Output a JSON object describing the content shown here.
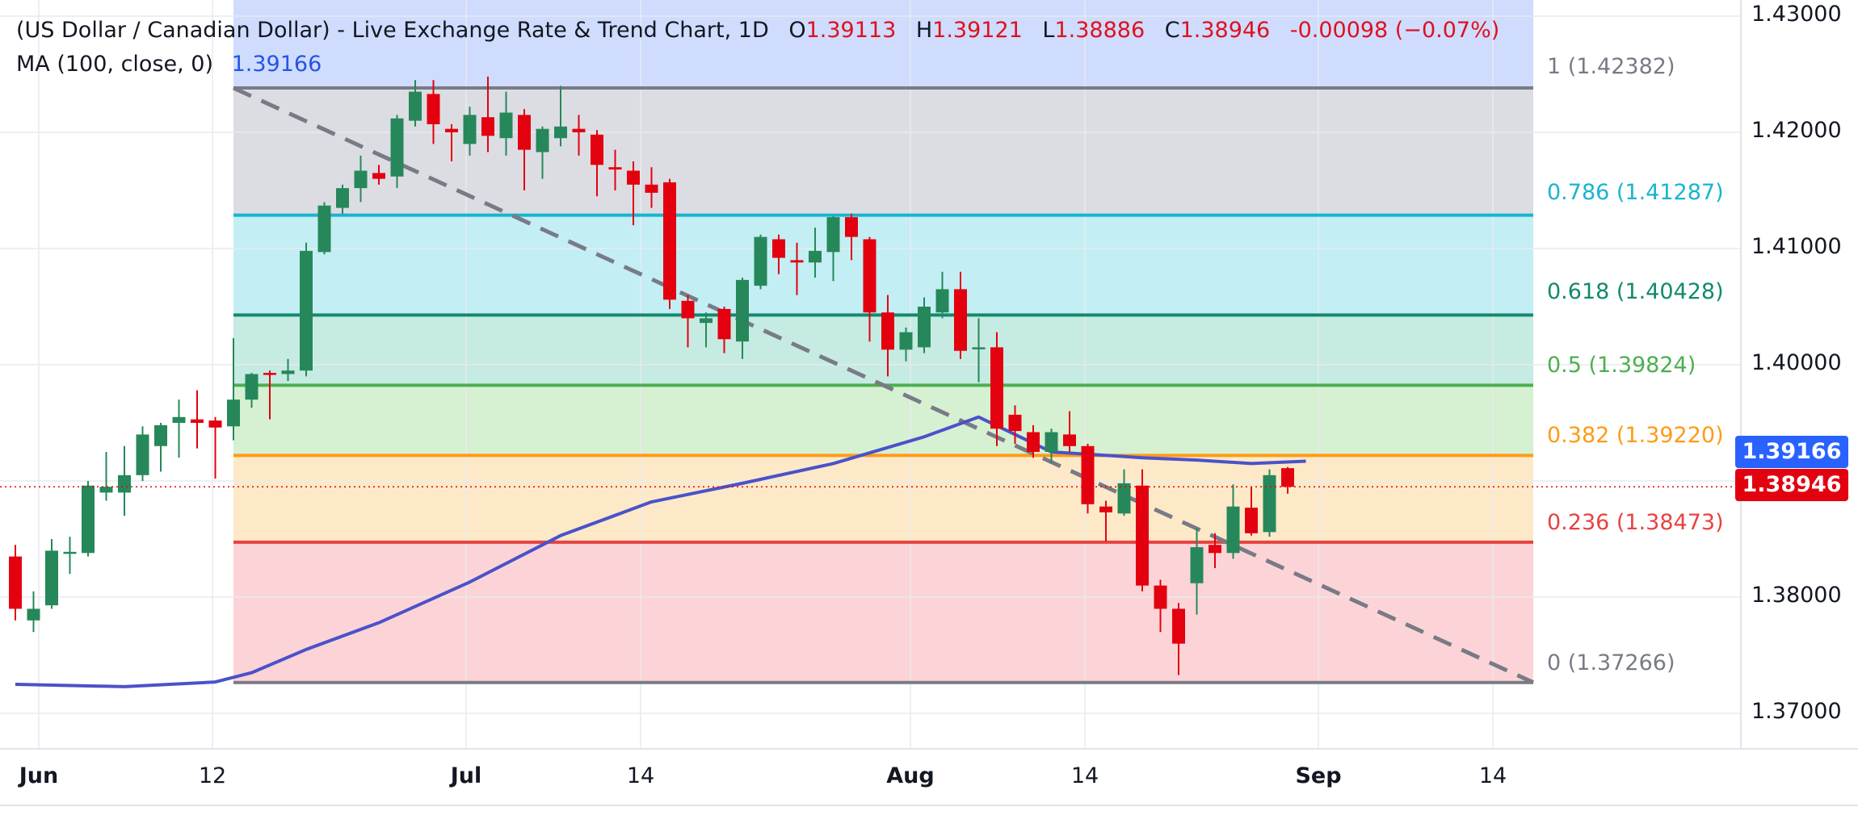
{
  "header": {
    "title": "(US Dollar / Canadian Dollar) - Live Exchange Rate & Trend Chart, 1D",
    "o_label": "O",
    "o_value": "1.39113",
    "h_label": "H",
    "h_value": "1.39121",
    "l_label": "L",
    "l_value": "1.38886",
    "c_label": "C",
    "c_value": "1.38946",
    "change": "-0.00098 (−0.07%)",
    "ma_label": "MA (100, close, 0)",
    "ma_value": "1.39166"
  },
  "colors": {
    "up": "#26885a",
    "down": "#e3000f",
    "ma": "#4a52c9",
    "fib_1": "#787b86",
    "fib_786": "#17b5cf",
    "fib_618": "#128a6e",
    "fib_5": "#4caf50",
    "fib_382": "#ff9a16",
    "fib_236": "#e84242",
    "fib_0": "#787b86"
  },
  "price_tags": {
    "ma": "1.39166",
    "close": "1.38946"
  },
  "chart_data": {
    "type": "candlestick",
    "title": "(US Dollar / Canadian Dollar) - Live Exchange Rate & Trend Chart, 1D",
    "ylim": [
      1.3678,
      1.4302
    ],
    "y_ticks": [
      "1.43000",
      "1.42000",
      "1.41000",
      "1.40000",
      "1.39000",
      "1.38000",
      "1.37000"
    ],
    "x_ticks": [
      "Jun",
      "12",
      "Jul",
      "14",
      "Aug",
      "14",
      "Sep",
      "14"
    ],
    "grid": true,
    "candles": [
      {
        "o": 1.3835,
        "h": 1.3845,
        "l": 1.378,
        "c": 1.379
      },
      {
        "o": 1.378,
        "h": 1.3805,
        "l": 1.377,
        "c": 1.379
      },
      {
        "o": 1.3793,
        "h": 1.385,
        "l": 1.379,
        "c": 1.384
      },
      {
        "o": 1.3838,
        "h": 1.3852,
        "l": 1.382,
        "c": 1.3839
      },
      {
        "o": 1.3838,
        "h": 1.39,
        "l": 1.3835,
        "c": 1.3896
      },
      {
        "o": 1.389,
        "h": 1.3925,
        "l": 1.3883,
        "c": 1.3895
      },
      {
        "o": 1.389,
        "h": 1.393,
        "l": 1.387,
        "c": 1.3905
      },
      {
        "o": 1.3905,
        "h": 1.3947,
        "l": 1.39,
        "c": 1.394
      },
      {
        "o": 1.393,
        "h": 1.395,
        "l": 1.3908,
        "c": 1.3948
      },
      {
        "o": 1.395,
        "h": 1.397,
        "l": 1.392,
        "c": 1.3955
      },
      {
        "o": 1.3953,
        "h": 1.3978,
        "l": 1.3928,
        "c": 1.395
      },
      {
        "o": 1.3952,
        "h": 1.3955,
        "l": 1.3902,
        "c": 1.3946
      },
      {
        "o": 1.3947,
        "h": 1.4023,
        "l": 1.3935,
        "c": 1.397
      },
      {
        "o": 1.397,
        "h": 1.3993,
        "l": 1.3963,
        "c": 1.3992
      },
      {
        "o": 1.3993,
        "h": 1.3995,
        "l": 1.3953,
        "c": 1.3992
      },
      {
        "o": 1.3992,
        "h": 1.4005,
        "l": 1.3986,
        "c": 1.3995
      },
      {
        "o": 1.3995,
        "h": 1.4105,
        "l": 1.399,
        "c": 1.4098
      },
      {
        "o": 1.4097,
        "h": 1.414,
        "l": 1.4095,
        "c": 1.4137
      },
      {
        "o": 1.4135,
        "h": 1.4155,
        "l": 1.413,
        "c": 1.4152
      },
      {
        "o": 1.4152,
        "h": 1.418,
        "l": 1.414,
        "c": 1.4167
      },
      {
        "o": 1.4165,
        "h": 1.4172,
        "l": 1.4155,
        "c": 1.416
      },
      {
        "o": 1.4162,
        "h": 1.4215,
        "l": 1.4152,
        "c": 1.4212
      },
      {
        "o": 1.421,
        "h": 1.4245,
        "l": 1.4205,
        "c": 1.4235
      },
      {
        "o": 1.4233,
        "h": 1.4245,
        "l": 1.419,
        "c": 1.4207
      },
      {
        "o": 1.4203,
        "h": 1.4207,
        "l": 1.4175,
        "c": 1.42
      },
      {
        "o": 1.419,
        "h": 1.4222,
        "l": 1.418,
        "c": 1.4215
      },
      {
        "o": 1.4213,
        "h": 1.4248,
        "l": 1.4183,
        "c": 1.4197
      },
      {
        "o": 1.4195,
        "h": 1.4235,
        "l": 1.418,
        "c": 1.4217
      },
      {
        "o": 1.4215,
        "h": 1.422,
        "l": 1.415,
        "c": 1.4185
      },
      {
        "o": 1.4183,
        "h": 1.4205,
        "l": 1.416,
        "c": 1.4203
      },
      {
        "o": 1.4195,
        "h": 1.424,
        "l": 1.4188,
        "c": 1.4205
      },
      {
        "o": 1.4203,
        "h": 1.4215,
        "l": 1.418,
        "c": 1.42
      },
      {
        "o": 1.4198,
        "h": 1.4202,
        "l": 1.4145,
        "c": 1.4172
      },
      {
        "o": 1.417,
        "h": 1.4185,
        "l": 1.415,
        "c": 1.4168
      },
      {
        "o": 1.4167,
        "h": 1.4175,
        "l": 1.412,
        "c": 1.4155
      },
      {
        "o": 1.4155,
        "h": 1.417,
        "l": 1.4135,
        "c": 1.4148
      },
      {
        "o": 1.4157,
        "h": 1.416,
        "l": 1.4048,
        "c": 1.4056
      },
      {
        "o": 1.4055,
        "h": 1.406,
        "l": 1.4015,
        "c": 1.404
      },
      {
        "o": 1.4036,
        "h": 1.4045,
        "l": 1.4015,
        "c": 1.404
      },
      {
        "o": 1.4048,
        "h": 1.405,
        "l": 1.401,
        "c": 1.4022
      },
      {
        "o": 1.402,
        "h": 1.4075,
        "l": 1.4005,
        "c": 1.4073
      },
      {
        "o": 1.4068,
        "h": 1.4112,
        "l": 1.4065,
        "c": 1.411
      },
      {
        "o": 1.4108,
        "h": 1.4112,
        "l": 1.4078,
        "c": 1.4092
      },
      {
        "o": 1.409,
        "h": 1.4105,
        "l": 1.406,
        "c": 1.4088
      },
      {
        "o": 1.4088,
        "h": 1.4118,
        "l": 1.4075,
        "c": 1.4098
      },
      {
        "o": 1.4097,
        "h": 1.4128,
        "l": 1.4072,
        "c": 1.4127
      },
      {
        "o": 1.4127,
        "h": 1.413,
        "l": 1.409,
        "c": 1.411
      },
      {
        "o": 1.4108,
        "h": 1.411,
        "l": 1.402,
        "c": 1.4045
      },
      {
        "o": 1.4045,
        "h": 1.406,
        "l": 1.399,
        "c": 1.4013
      },
      {
        "o": 1.4013,
        "h": 1.4032,
        "l": 1.4003,
        "c": 1.4028
      },
      {
        "o": 1.4015,
        "h": 1.4058,
        "l": 1.401,
        "c": 1.405
      },
      {
        "o": 1.4045,
        "h": 1.408,
        "l": 1.404,
        "c": 1.4065
      },
      {
        "o": 1.4065,
        "h": 1.408,
        "l": 1.4005,
        "c": 1.4012
      },
      {
        "o": 1.4014,
        "h": 1.404,
        "l": 1.3985,
        "c": 1.4015
      },
      {
        "o": 1.4015,
        "h": 1.4028,
        "l": 1.393,
        "c": 1.3945
      },
      {
        "o": 1.3957,
        "h": 1.3965,
        "l": 1.3932,
        "c": 1.3943
      },
      {
        "o": 1.3942,
        "h": 1.3948,
        "l": 1.392,
        "c": 1.3925
      },
      {
        "o": 1.3925,
        "h": 1.3945,
        "l": 1.3915,
        "c": 1.3942
      },
      {
        "o": 1.394,
        "h": 1.396,
        "l": 1.3925,
        "c": 1.393
      },
      {
        "o": 1.393,
        "h": 1.3932,
        "l": 1.3872,
        "c": 1.388
      },
      {
        "o": 1.3878,
        "h": 1.3883,
        "l": 1.3848,
        "c": 1.3873
      },
      {
        "o": 1.3872,
        "h": 1.391,
        "l": 1.387,
        "c": 1.3898
      },
      {
        "o": 1.3896,
        "h": 1.391,
        "l": 1.3805,
        "c": 1.381
      },
      {
        "o": 1.381,
        "h": 1.3815,
        "l": 1.377,
        "c": 1.379
      },
      {
        "o": 1.379,
        "h": 1.3795,
        "l": 1.3733,
        "c": 1.376
      },
      {
        "o": 1.3812,
        "h": 1.386,
        "l": 1.3785,
        "c": 1.3843
      },
      {
        "o": 1.3845,
        "h": 1.3855,
        "l": 1.3825,
        "c": 1.3838
      },
      {
        "o": 1.3838,
        "h": 1.3897,
        "l": 1.3833,
        "c": 1.3878
      },
      {
        "o": 1.3877,
        "h": 1.3895,
        "l": 1.3853,
        "c": 1.3855
      },
      {
        "o": 1.3856,
        "h": 1.391,
        "l": 1.3852,
        "c": 1.3905
      },
      {
        "o": 1.3911,
        "h": 1.3912,
        "l": 1.3889,
        "c": 1.3895
      }
    ],
    "moving_average": {
      "name": "MA (100, close, 0)",
      "values": [
        [
          0,
          1.3725
        ],
        [
          6,
          1.3723
        ],
        [
          11,
          1.3727
        ],
        [
          13,
          1.3735
        ],
        [
          16,
          1.3755
        ],
        [
          20,
          1.3778
        ],
        [
          25,
          1.3813
        ],
        [
          30,
          1.3853
        ],
        [
          35,
          1.3882
        ],
        [
          40,
          1.3898
        ],
        [
          45,
          1.3915
        ],
        [
          50,
          1.3938
        ],
        [
          53,
          1.3955
        ],
        [
          57,
          1.3925
        ],
        [
          62,
          1.392
        ],
        [
          65,
          1.3918
        ],
        [
          68,
          1.3915
        ],
        [
          71,
          1.3917
        ]
      ]
    },
    "trendline": {
      "from": [
        12,
        1.42382
      ],
      "to": [
        82,
        1.37266
      ]
    },
    "fibonacci": [
      {
        "level": "1",
        "value": "1.42382",
        "label": "1 (1.42382)",
        "key": "fib_1"
      },
      {
        "level": "0.786",
        "value": "1.41287",
        "label": "0.786 (1.41287)",
        "key": "fib_786"
      },
      {
        "level": "0.618",
        "value": "1.40428",
        "label": "0.618 (1.40428)",
        "key": "fib_618"
      },
      {
        "level": "0.5",
        "value": "1.39824",
        "label": "0.5 (1.39824)",
        "key": "fib_5"
      },
      {
        "level": "0.382",
        "value": "1.39220",
        "label": "0.382 (1.39220)",
        "key": "fib_382"
      },
      {
        "level": "0.236",
        "value": "1.38473",
        "label": "0.236 (1.38473)",
        "key": "fib_236"
      },
      {
        "level": "0",
        "value": "1.37266",
        "label": "0 (1.37266)",
        "key": "fib_0"
      }
    ]
  }
}
